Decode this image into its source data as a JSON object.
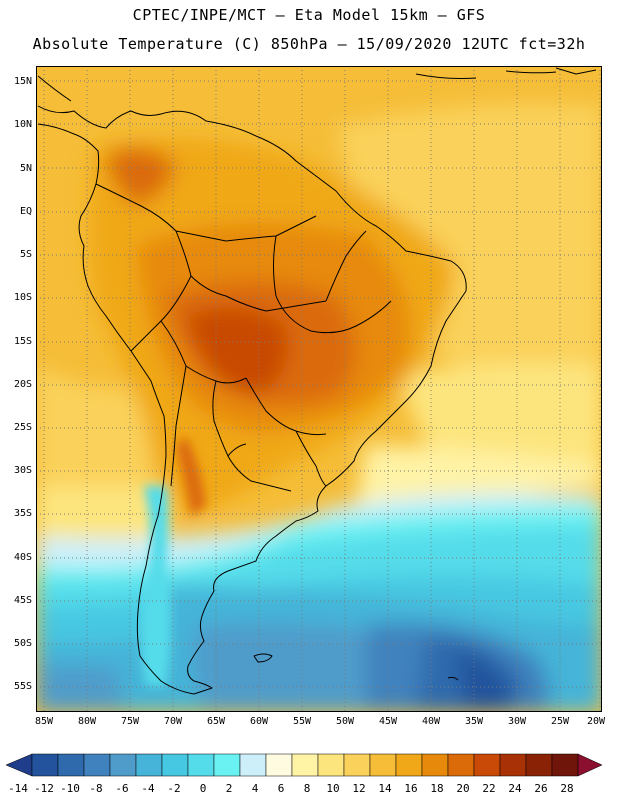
{
  "header": {
    "line1": "CPTEC/INPE/MCT –  Eta Model 15km – GFS",
    "line2": "Absolute Temperature (C) 850hPa – 15/09/2020 12UTC fct=32h"
  },
  "map": {
    "region": "South America",
    "variable": "Absolute Temperature 850hPa",
    "lat_labels": [
      "15N",
      "10N",
      "5N",
      "EQ",
      "5S",
      "10S",
      "15S",
      "20S",
      "25S",
      "30S",
      "35S",
      "40S",
      "45S",
      "50S",
      "55S"
    ],
    "lon_labels": [
      "85W",
      "80W",
      "75W",
      "70W",
      "65W",
      "60W",
      "55W",
      "50W",
      "45W",
      "40W",
      "35W",
      "30W",
      "25W",
      "20W"
    ]
  },
  "colorbar": {
    "labels": [
      "-14",
      "-12",
      "-10",
      "-8",
      "-6",
      "-4",
      "-2",
      "0",
      "2",
      "4",
      "6",
      "8",
      "10",
      "12",
      "14",
      "16",
      "18",
      "20",
      "22",
      "24",
      "26",
      "28"
    ],
    "colors": [
      "#1f3d8a",
      "#23539c",
      "#2f6aad",
      "#3f82bd",
      "#4f9ccb",
      "#45b4d8",
      "#47c8e2",
      "#55dcea",
      "#6af2f2",
      "#cdeffa",
      "#fffbe0",
      "#fff3a6",
      "#fde57e",
      "#fad15a",
      "#f5bd38",
      "#f0a818",
      "#e78a0c",
      "#db6a08",
      "#c84a06",
      "#a83205",
      "#8a2206",
      "#6f1509",
      "#8b0f2e"
    ]
  }
}
